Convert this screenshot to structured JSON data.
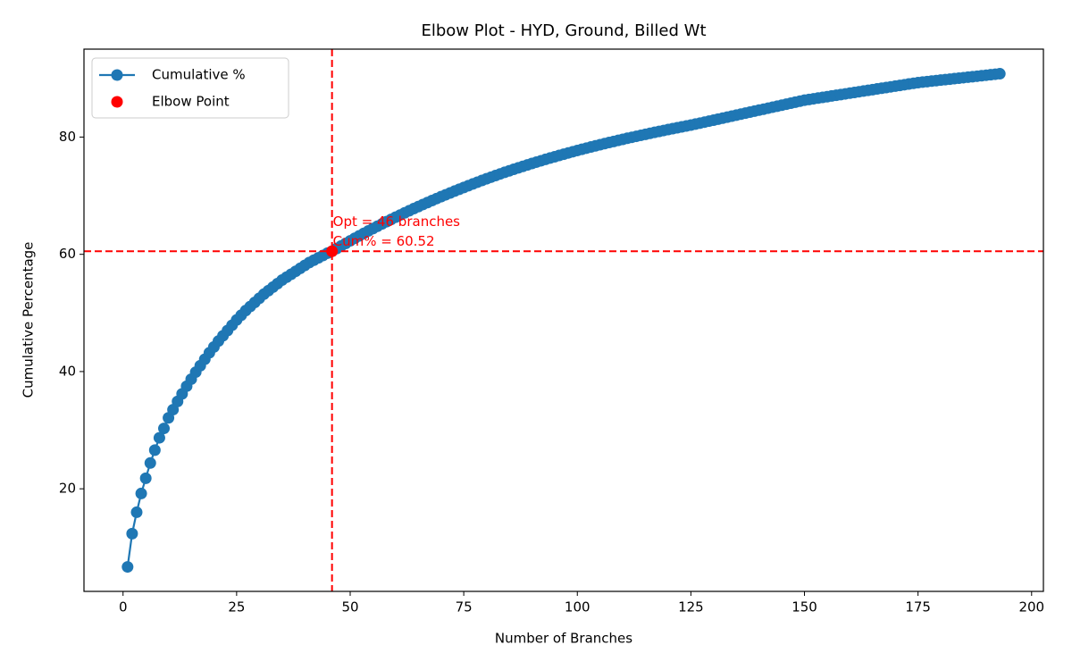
{
  "chart_data": {
    "type": "line",
    "title": "Elbow Plot - HYD, Ground, Billed Wt",
    "x_label": "Number of Branches",
    "y_label": "Cumulative Percentage",
    "x": [
      1,
      2,
      3,
      4,
      5,
      6,
      7,
      8,
      9,
      10,
      11,
      12,
      13,
      14,
      15,
      16,
      17,
      18,
      19,
      20,
      21,
      22,
      23,
      24,
      25,
      26,
      27,
      28,
      29,
      30,
      31,
      32,
      33,
      34,
      35,
      36,
      37,
      38,
      39,
      40,
      41,
      42,
      43,
      44,
      45,
      46,
      47,
      48,
      49,
      50,
      51,
      52,
      53,
      54,
      55,
      56,
      57,
      58,
      59,
      60,
      61,
      62,
      63,
      64,
      65,
      66,
      67,
      68,
      69,
      70,
      71,
      72,
      73,
      74,
      75,
      76,
      77,
      78,
      79,
      80,
      81,
      82,
      83,
      84,
      85,
      86,
      87,
      88,
      89,
      90,
      91,
      92,
      93,
      94,
      95,
      96,
      97,
      98,
      99,
      100,
      101,
      102,
      103,
      104,
      105,
      106,
      107,
      108,
      109,
      110,
      111,
      112,
      113,
      114,
      115,
      116,
      117,
      118,
      119,
      120,
      121,
      122,
      123,
      124,
      125,
      126,
      127,
      128,
      129,
      130,
      131,
      132,
      133,
      134,
      135,
      136,
      137,
      138,
      139,
      140,
      141,
      142,
      143,
      144,
      145,
      146,
      147,
      148,
      149,
      150,
      151,
      152,
      153,
      154,
      155,
      156,
      157,
      158,
      159,
      160,
      161,
      162,
      163,
      164,
      165,
      166,
      167,
      168,
      169,
      170,
      171,
      172,
      173,
      174,
      175,
      176,
      177,
      178,
      179,
      180,
      181,
      182,
      183,
      184,
      185,
      186,
      187,
      188,
      189,
      190,
      191,
      192,
      193
    ],
    "series": [
      {
        "name": "Cumulative %",
        "color": "#1f77b4",
        "values": [
          6.68,
          12.35,
          16.0,
          19.2,
          21.8,
          24.4,
          26.6,
          28.7,
          30.3,
          32.1,
          33.5,
          34.9,
          36.2,
          37.5,
          38.7,
          39.9,
          41.0,
          42.1,
          43.2,
          44.2,
          45.2,
          46.1,
          47.0,
          47.9,
          48.8,
          49.6,
          50.4,
          51.1,
          51.8,
          52.5,
          53.2,
          53.8,
          54.4,
          55.0,
          55.6,
          56.1,
          56.6,
          57.1,
          57.6,
          58.1,
          58.6,
          59.0,
          59.4,
          59.8,
          60.2,
          60.52,
          60.97,
          61.42,
          61.86,
          62.3,
          62.73,
          63.15,
          63.57,
          63.98,
          64.39,
          64.79,
          65.18,
          65.57,
          65.95,
          66.33,
          66.7,
          67.07,
          67.43,
          67.79,
          68.14,
          68.49,
          68.83,
          69.17,
          69.5,
          69.83,
          70.15,
          70.47,
          70.78,
          71.09,
          71.4,
          71.7,
          72.0,
          72.3,
          72.59,
          72.88,
          73.16,
          73.44,
          73.71,
          73.98,
          74.24,
          74.5,
          74.75,
          75.0,
          75.25,
          75.49,
          75.73,
          75.96,
          76.19,
          76.42,
          76.64,
          76.86,
          77.08,
          77.29,
          77.5,
          77.71,
          77.91,
          78.11,
          78.31,
          78.5,
          78.69,
          78.88,
          79.07,
          79.25,
          79.43,
          79.61,
          79.79,
          79.96,
          80.13,
          80.3,
          80.47,
          80.64,
          80.8,
          80.96,
          81.12,
          81.28,
          81.44,
          81.59,
          81.74,
          81.89,
          82.04,
          82.21,
          82.38,
          82.55,
          82.72,
          82.89,
          83.06,
          83.23,
          83.4,
          83.57,
          83.74,
          83.91,
          84.08,
          84.25,
          84.42,
          84.59,
          84.76,
          84.93,
          85.1,
          85.27,
          85.44,
          85.61,
          85.78,
          85.95,
          86.12,
          86.29,
          86.41,
          86.53,
          86.65,
          86.77,
          86.89,
          87.01,
          87.13,
          87.25,
          87.37,
          87.49,
          87.61,
          87.73,
          87.85,
          87.97,
          88.09,
          88.21,
          88.33,
          88.45,
          88.57,
          88.69,
          88.81,
          88.93,
          89.05,
          89.17,
          89.29,
          89.38,
          89.46,
          89.55,
          89.63,
          89.72,
          89.8,
          89.88,
          89.97,
          90.05,
          90.13,
          90.22,
          90.3,
          90.38,
          90.47,
          90.55,
          90.63,
          90.72,
          90.8
        ]
      }
    ],
    "elbow": {
      "name": "Elbow Point",
      "color": "red",
      "x": 46,
      "y": 60.52
    },
    "annotation": [
      "Opt = 46 branches",
      "Cum% = 60.52"
    ],
    "xlim": [
      -8.6,
      202.6
    ],
    "ylim": [
      2.5,
      95.0
    ],
    "xticks": [
      0,
      25,
      50,
      75,
      100,
      125,
      150,
      175,
      200
    ],
    "yticks": [
      20,
      40,
      60,
      80
    ],
    "grid": false,
    "legend": "upper left"
  }
}
